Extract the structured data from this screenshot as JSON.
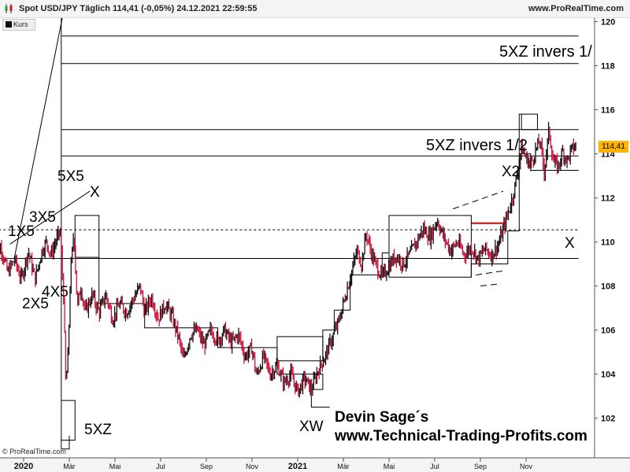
{
  "header": {
    "title": "Spot USD/JPY Täglich 114,41 (-0,05%) 24.12.2021 22:59:55",
    "site": "www.ProRealTime.com",
    "icon": "candlestick-chart-icon"
  },
  "legend": {
    "label": "Kurs",
    "swatch_color": "#111111"
  },
  "copyright": "© ProRealTime.com",
  "price_tag": {
    "text": "114,41",
    "color": "#ffb400"
  },
  "colors": {
    "bull": "#111111",
    "bear": "#d0103a",
    "accent_line": "#e00000"
  },
  "watermark": {
    "line1": "Devin Sage´s",
    "line2": "www.Technical-Trading-Profits.com"
  },
  "annotations": {
    "lbl_1x5": "1X5",
    "lbl_2x5": "2X5",
    "lbl_3x5": "3X5",
    "lbl_4x5": "4X5",
    "lbl_5x5": "5X5",
    "lbl_x_top": "X",
    "lbl_5xz_bottom": "5XZ",
    "lbl_xw": "XW",
    "lbl_x2": "X2",
    "lbl_x_right": "X",
    "lbl_5xz_inv_half": "5XZ invers 1/2",
    "lbl_5xz_inv_top": "5XZ invers 1/"
  },
  "chart_data": {
    "type": "line",
    "instrument": "Spot USD/JPY",
    "interval": "Täglich",
    "last_value": 114.41,
    "change_pct": -0.05,
    "ylim": [
      100.3,
      121.2
    ],
    "y_ticks": [
      {
        "v": 102,
        "l": "102"
      },
      {
        "v": 104,
        "l": "104"
      },
      {
        "v": 106,
        "l": "106"
      },
      {
        "v": 108,
        "l": "108"
      },
      {
        "v": 110,
        "l": "110"
      },
      {
        "v": 112,
        "l": "112"
      },
      {
        "v": 114,
        "l": "114"
      },
      {
        "v": 116,
        "l": "116"
      },
      {
        "v": 118,
        "l": "118"
      },
      {
        "v": 120,
        "l": "120"
      }
    ],
    "x_ticks": [
      {
        "t": 0.0,
        "l": "2020",
        "bold": true
      },
      {
        "t": 2.0,
        "l": "Mär"
      },
      {
        "t": 4.0,
        "l": "Mai"
      },
      {
        "t": 6.0,
        "l": "Jul"
      },
      {
        "t": 8.0,
        "l": "Sep"
      },
      {
        "t": 10.0,
        "l": "Nov"
      },
      {
        "t": 12.0,
        "l": "2021",
        "bold": true
      },
      {
        "t": 14.0,
        "l": "Mär"
      },
      {
        "t": 16.0,
        "l": "Mai"
      },
      {
        "t": 18.0,
        "l": "Jul"
      },
      {
        "t": 20.0,
        "l": "Sep"
      },
      {
        "t": 22.0,
        "l": "Nov"
      }
    ],
    "price_path": [
      [
        -1.3,
        109.0
      ],
      [
        -1.0,
        109.8
      ],
      [
        -0.7,
        108.6
      ],
      [
        -0.4,
        109.2
      ],
      [
        -0.1,
        108.3
      ],
      [
        0.2,
        109.6
      ],
      [
        0.5,
        108.3
      ],
      [
        0.8,
        109.6
      ],
      [
        1.0,
        110.0
      ],
      [
        1.2,
        109.4
      ],
      [
        1.4,
        110.0
      ],
      [
        1.6,
        110.5
      ],
      [
        1.75,
        107.5
      ],
      [
        1.85,
        103.4
      ],
      [
        1.95,
        105.0
      ],
      [
        2.05,
        108.5
      ],
      [
        2.2,
        110.5
      ],
      [
        2.35,
        107.0
      ],
      [
        2.5,
        108.0
      ],
      [
        2.7,
        106.8
      ],
      [
        3.0,
        107.6
      ],
      [
        3.3,
        106.8
      ],
      [
        3.6,
        107.6
      ],
      [
        3.9,
        106.5
      ],
      [
        4.2,
        107.2
      ],
      [
        4.5,
        106.8
      ],
      [
        4.8,
        107.4
      ],
      [
        5.1,
        108.0
      ],
      [
        5.3,
        106.8
      ],
      [
        5.6,
        107.5
      ],
      [
        5.9,
        106.5
      ],
      [
        6.2,
        107.2
      ],
      [
        6.5,
        106.6
      ],
      [
        6.8,
        105.6
      ],
      [
        7.0,
        104.6
      ],
      [
        7.3,
        105.8
      ],
      [
        7.6,
        106.0
      ],
      [
        7.9,
        105.3
      ],
      [
        8.2,
        106.0
      ],
      [
        8.5,
        105.5
      ],
      [
        8.8,
        106.0
      ],
      [
        9.1,
        105.4
      ],
      [
        9.4,
        105.8
      ],
      [
        9.7,
        104.8
      ],
      [
        10.0,
        105.2
      ],
      [
        10.2,
        103.9
      ],
      [
        10.5,
        104.8
      ],
      [
        10.8,
        104.0
      ],
      [
        11.1,
        104.4
      ],
      [
        11.4,
        103.6
      ],
      [
        11.7,
        104.0
      ],
      [
        12.0,
        103.2
      ],
      [
        12.3,
        103.8
      ],
      [
        12.6,
        103.3
      ],
      [
        12.9,
        104.2
      ],
      [
        13.2,
        104.8
      ],
      [
        13.5,
        105.6
      ],
      [
        13.8,
        106.4
      ],
      [
        14.1,
        107.6
      ],
      [
        14.4,
        108.8
      ],
      [
        14.6,
        109.6
      ],
      [
        14.8,
        109.0
      ],
      [
        15.0,
        110.4
      ],
      [
        15.2,
        109.6
      ],
      [
        15.4,
        109.0
      ],
      [
        15.7,
        108.4
      ],
      [
        16.0,
        108.9
      ],
      [
        16.3,
        109.4
      ],
      [
        16.6,
        109.0
      ],
      [
        16.9,
        109.4
      ],
      [
        17.2,
        110.0
      ],
      [
        17.5,
        110.6
      ],
      [
        17.8,
        110.2
      ],
      [
        18.1,
        111.0
      ],
      [
        18.4,
        110.2
      ],
      [
        18.7,
        109.6
      ],
      [
        19.0,
        110.0
      ],
      [
        19.3,
        109.4
      ],
      [
        19.6,
        109.8
      ],
      [
        19.9,
        109.2
      ],
      [
        20.2,
        109.7
      ],
      [
        20.5,
        109.4
      ],
      [
        20.8,
        109.9
      ],
      [
        21.1,
        110.9
      ],
      [
        21.4,
        112.0
      ],
      [
        21.6,
        113.0
      ],
      [
        21.8,
        114.3
      ],
      [
        22.0,
        113.8
      ],
      [
        22.2,
        113.5
      ],
      [
        22.4,
        114.1
      ],
      [
        22.6,
        114.6
      ],
      [
        22.8,
        113.2
      ],
      [
        23.0,
        115.1
      ],
      [
        23.2,
        113.6
      ],
      [
        23.4,
        113.4
      ],
      [
        23.6,
        114.1
      ],
      [
        23.8,
        113.7
      ],
      [
        24.0,
        114.2
      ],
      [
        24.2,
        114.4
      ]
    ],
    "horizontal_levels": [
      {
        "y": 119.35,
        "x1": 1.65,
        "x2": 24.3,
        "dash": false
      },
      {
        "y": 118.1,
        "x1": 1.65,
        "x2": 24.3,
        "dash": false
      },
      {
        "y": 115.1,
        "x1": 1.65,
        "x2": 24.3,
        "dash": false
      },
      {
        "y": 113.9,
        "x1": 1.65,
        "x2": 24.3,
        "dash": false
      },
      {
        "y": 110.55,
        "x1": -1.3,
        "x2": 24.3,
        "dash": true
      },
      {
        "y": 109.25,
        "x1": -1.3,
        "x2": 24.3,
        "dash": false
      },
      {
        "y": 113.25,
        "x1": 22.2,
        "x2": 24.3,
        "dash": false
      },
      {
        "y": 110.85,
        "x1": 19.6,
        "x2": 21.1,
        "dash": false,
        "accent": true
      }
    ],
    "boxes": [
      {
        "x": [
          1.65,
          2.25
        ],
        "y": [
          101.0,
          102.8
        ]
      },
      {
        "x": [
          2.25,
          3.3
        ],
        "y": [
          109.3,
          111.2
        ]
      },
      {
        "x": [
          11.1,
          13.1
        ],
        "y": [
          104.6,
          105.7
        ]
      },
      {
        "x": [
          16.0,
          19.6
        ],
        "y": [
          108.4,
          111.2
        ]
      },
      {
        "x": [
          21.8,
          22.5
        ],
        "y": [
          115.1,
          115.8
        ]
      }
    ],
    "steps": [
      [
        [
          1.65,
          102.8
        ],
        [
          1.65,
          121.2
        ]
      ],
      [
        [
          1.65,
          101.0
        ],
        [
          1.65,
          100.6
        ],
        [
          2.0,
          100.6
        ],
        [
          2.0,
          101.2
        ]
      ],
      [
        [
          3.3,
          109.3
        ],
        [
          3.3,
          107.2
        ],
        [
          5.3,
          107.2
        ],
        [
          5.3,
          106.1
        ],
        [
          8.5,
          106.1
        ],
        [
          8.5,
          105.2
        ],
        [
          11.1,
          105.2
        ],
        [
          11.1,
          104.0
        ],
        [
          13.1,
          104.0
        ],
        [
          13.1,
          103.3
        ],
        [
          12.6,
          103.3
        ],
        [
          12.6,
          102.5
        ],
        [
          13.4,
          102.5
        ]
      ],
      [
        [
          13.1,
          104.6
        ],
        [
          13.1,
          106.0
        ],
        [
          13.6,
          106.0
        ],
        [
          13.6,
          106.9
        ],
        [
          14.3,
          106.9
        ],
        [
          14.3,
          108.5
        ],
        [
          15.7,
          108.5
        ],
        [
          15.7,
          109.5
        ],
        [
          16.0,
          109.5
        ]
      ],
      [
        [
          19.6,
          108.4
        ],
        [
          19.6,
          109.0
        ],
        [
          21.2,
          109.0
        ],
        [
          21.2,
          110.5
        ],
        [
          21.7,
          110.5
        ],
        [
          21.7,
          114.0
        ],
        [
          22.2,
          114.0
        ],
        [
          22.2,
          113.2
        ]
      ],
      [
        [
          21.7,
          114.0
        ],
        [
          21.7,
          115.8
        ],
        [
          21.8,
          115.8
        ]
      ]
    ],
    "trendlines": [
      [
        [
          -0.6,
          109.9
        ],
        [
          2.9,
          112.3
        ]
      ],
      [
        [
          -0.4,
          109.3
        ],
        [
          1.7,
          121.2
        ]
      ]
    ],
    "dashed_segments": [
      [
        [
          18.8,
          111.5
        ],
        [
          21.0,
          112.3
        ]
      ],
      [
        [
          19.8,
          108.5
        ],
        [
          21.1,
          108.7
        ]
      ],
      [
        [
          20.0,
          108.0
        ],
        [
          20.9,
          108.1
        ]
      ]
    ]
  }
}
